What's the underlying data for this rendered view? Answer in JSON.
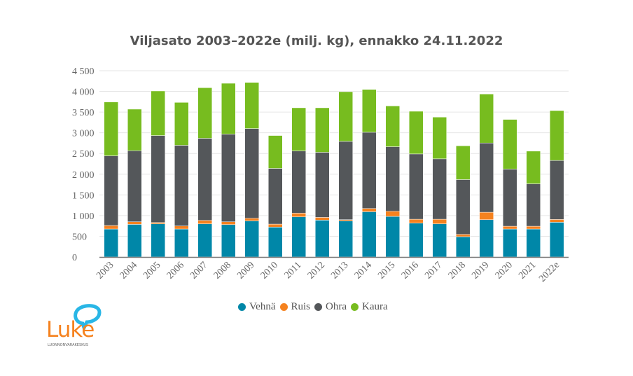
{
  "chart_data": {
    "type": "bar",
    "stacked": true,
    "title": "Viljasato 2003–2022e (milj. kg), ennakko 24.11.2022",
    "xlabel": "",
    "ylabel": "",
    "ylim": [
      0,
      4500
    ],
    "yticks": [
      0,
      500,
      1000,
      1500,
      2000,
      2500,
      3000,
      3500,
      4000,
      4500
    ],
    "ytick_labels": [
      "0",
      "500",
      "1 000",
      "1 500",
      "2 000",
      "2 500",
      "3 000",
      "3 500",
      "4 000",
      "4 500"
    ],
    "grid": true,
    "legend_position": "bottom",
    "categories": [
      "2003",
      "2004",
      "2005",
      "2006",
      "2007",
      "2008",
      "2009",
      "2010",
      "2011",
      "2012",
      "2013",
      "2014",
      "2015",
      "2016",
      "2017",
      "2018",
      "2019",
      "2020",
      "2021",
      "2022e"
    ],
    "series": [
      {
        "name": "Vehnä",
        "color": "#0087a8",
        "values": [
          676,
          788,
          800,
          676,
          800,
          783,
          873,
          721,
          969,
          890,
          873,
          1093,
          980,
          817,
          800,
          490,
          901,
          676,
          676,
          839
        ]
      },
      {
        "name": "Ruis",
        "color": "#f5821f",
        "values": [
          84,
          62,
          33,
          73,
          84,
          67,
          62,
          73,
          90,
          67,
          28,
          78,
          124,
          95,
          112,
          56,
          180,
          67,
          67,
          68
        ]
      },
      {
        "name": "Ohra",
        "color": "#54575a",
        "values": [
          1684,
          1718,
          2101,
          1949,
          1983,
          2118,
          2168,
          1346,
          1504,
          1572,
          1892,
          1842,
          1560,
          1577,
          1459,
          1324,
          1673,
          1380,
          1025,
          1425
        ]
      },
      {
        "name": "Kaura",
        "color": "#77bc1f",
        "values": [
          1301,
          1003,
          1076,
          1036,
          1222,
          1228,
          1115,
          794,
          1041,
          1075,
          1200,
          1036,
          986,
          1031,
          1008,
          816,
          1183,
          1200,
          789,
          1205
        ]
      }
    ]
  },
  "logo": {
    "word": "Luke",
    "subtitle": "LUONNONVARAKESKUS"
  }
}
